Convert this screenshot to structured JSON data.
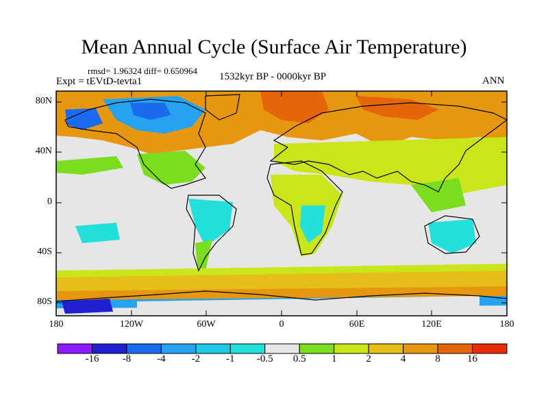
{
  "title": "Mean Annual Cycle (Surface Air Temperature)",
  "stats": "rmsd= 1.96324 diff= 0.650964",
  "experiment": "Expt = tEVtD-tevta1",
  "period": "1532kyr BP - 0000kyr BP",
  "season": "ANN",
  "lat_labels": [
    "80N",
    "40N",
    "0",
    "40S",
    "80S"
  ],
  "lon_labels": [
    "180",
    "120W",
    "60W",
    "0",
    "60E",
    "120E",
    "180"
  ],
  "colorbar": {
    "labels": [
      "-16",
      "-8",
      "-4",
      "-2",
      "-1",
      "-0.5",
      "0.5",
      "1",
      "2",
      "4",
      "8",
      "16"
    ],
    "colors": [
      "#8c1aff",
      "#2020d0",
      "#1a6bf0",
      "#26a3f0",
      "#1ec8e6",
      "#22e0dc",
      "#e6e6e6",
      "#7cdc1e",
      "#c8e61a",
      "#e6be1a",
      "#e6960f",
      "#e6640a",
      "#e62d0a"
    ]
  },
  "palette": {
    "ocean_neutral": "#e6e6e6",
    "green": "#7cdc1e",
    "yellow_green": "#c8e61a",
    "gold": "#e6be1a",
    "orange": "#e6960f",
    "dark_orange": "#e6640a",
    "cyan": "#22e0dc",
    "light_blue": "#26a3f0",
    "blue": "#1a6bf0",
    "dark_blue": "#2020d0"
  }
}
